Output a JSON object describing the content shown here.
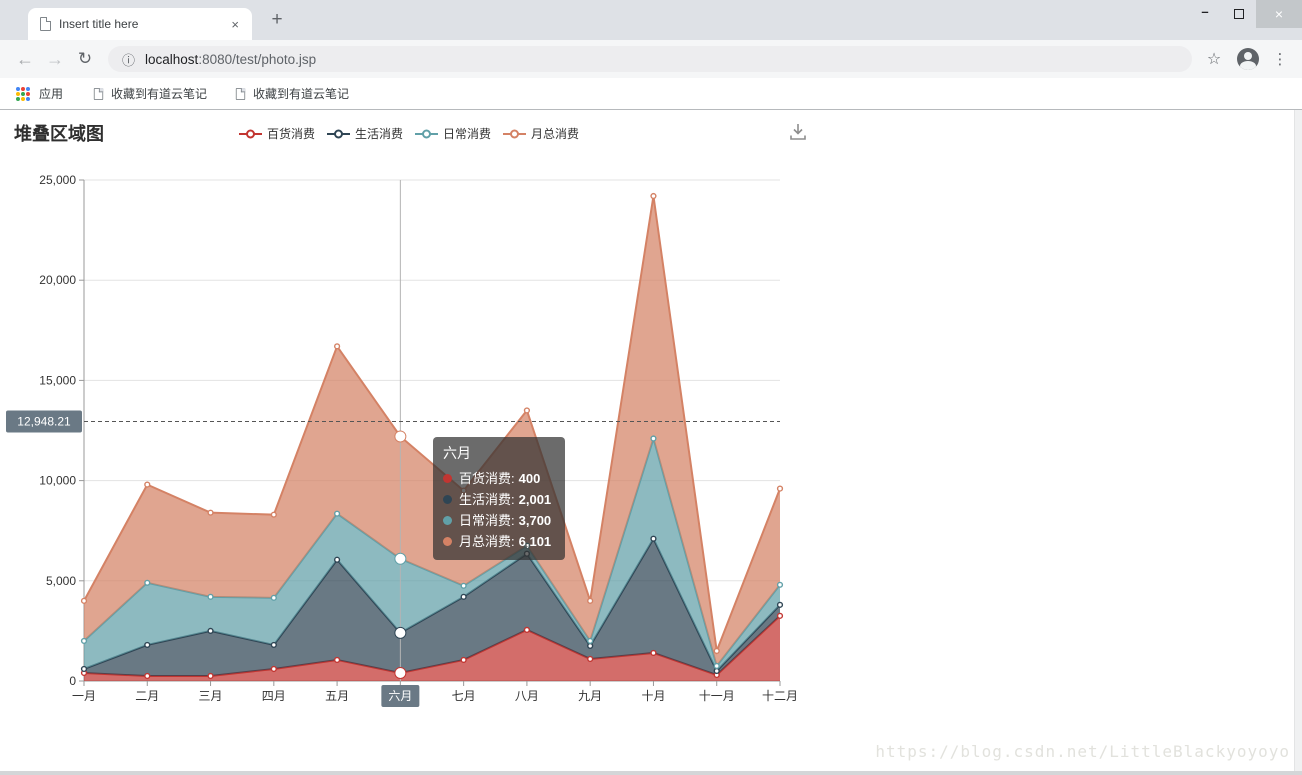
{
  "browser": {
    "tab": {
      "title": "Insert title here",
      "close_icon": "×",
      "new_tab_icon": "+"
    },
    "window": {
      "minimize_icon": "–",
      "maximize_icon": "square-outline",
      "close_icon": "×"
    },
    "toolbar": {
      "back_icon": "←",
      "forward_icon": "→",
      "reload_icon": "↻",
      "info_icon": "ⓘ",
      "url_host": "localhost",
      "url_path": ":8080/test/photo.jsp",
      "star_icon": "☆",
      "menu_icon": "⋮"
    },
    "bookmarks": {
      "apps_label": "应用",
      "items": [
        "收藏到有道云笔记",
        "收藏到有道云笔记"
      ]
    }
  },
  "page": {
    "title": "堆叠区域图",
    "watermark": "https://blog.csdn.net/LittleBlackyoyoyo"
  },
  "chart_data": {
    "type": "area",
    "stacked": true,
    "title": "堆叠区域图",
    "legend_position": "top",
    "grid": true,
    "categories": [
      "一月",
      "二月",
      "三月",
      "四月",
      "五月",
      "六月",
      "七月",
      "八月",
      "九月",
      "十月",
      "十一月",
      "十二月"
    ],
    "series": [
      {
        "name": "百货消费",
        "color": "#c23531",
        "values": [
          400,
          250,
          250,
          600,
          1050,
          400,
          1050,
          2550,
          1100,
          1400,
          300,
          3250
        ]
      },
      {
        "name": "生活消费",
        "color": "#2f4554",
        "values": [
          200,
          1550,
          2250,
          1200,
          5000,
          2001,
          3150,
          3800,
          650,
          5700,
          200,
          550
        ]
      },
      {
        "name": "日常消费",
        "color": "#61a0a8",
        "values": [
          1400,
          3100,
          1700,
          2350,
          2300,
          3700,
          550,
          400,
          250,
          5000,
          250,
          1000
        ]
      },
      {
        "name": "月总消费",
        "color": "#d48265",
        "values": [
          2000,
          4900,
          4200,
          4150,
          8350,
          6101,
          4750,
          6750,
          2000,
          12100,
          750,
          4800
        ]
      }
    ],
    "ylim": [
      0,
      25000
    ],
    "y_ticks": [
      "0",
      "5,000",
      "10,000",
      "15,000",
      "20,000",
      "25,000"
    ],
    "xlabel": "",
    "ylabel": "",
    "area_opacity": 0.72,
    "crosshair": {
      "index": 5,
      "x_label": "六月",
      "y_label": "12,948.21",
      "y_value": 12948.21
    },
    "tooltip": {
      "title": "六月",
      "rows": [
        {
          "name": "百货消费",
          "value": "400"
        },
        {
          "name": "生活消费",
          "value": "2,001"
        },
        {
          "name": "日常消费",
          "value": "3,700"
        },
        {
          "name": "月总消费",
          "value": "6,101"
        }
      ]
    }
  }
}
